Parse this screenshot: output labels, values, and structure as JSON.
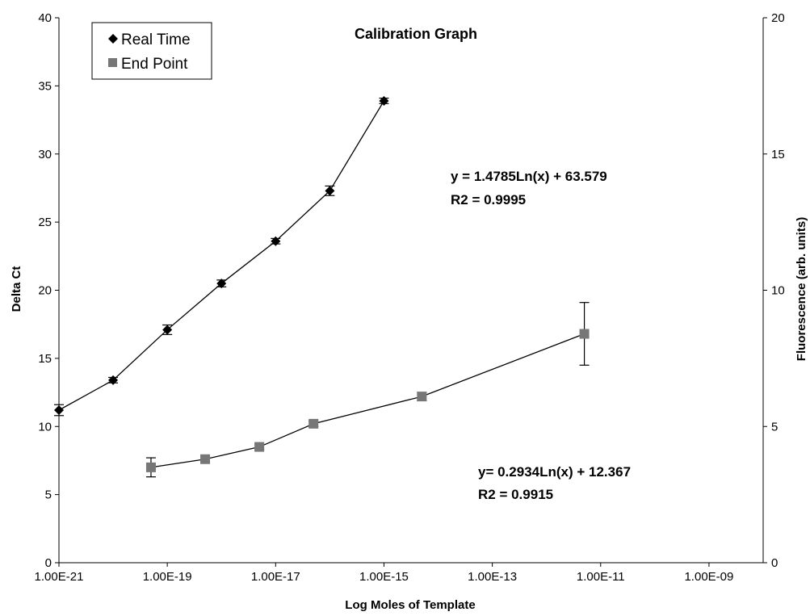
{
  "chart_data": {
    "type": "scatter",
    "title": "Calibration Graph",
    "xlabel": "Log  Moles of Template",
    "ylabel": "Delta Ct",
    "y2label": "Fluorescence (arb. units)",
    "x_scale": "log",
    "x_ticks": [
      "1.00E-21",
      "1.00E-19",
      "1.00E-17",
      "1.00E-15",
      "1.00E-13",
      "1.00E-11",
      "1.00E-09"
    ],
    "x_tick_values": [
      1e-21,
      1e-19,
      1e-17,
      1e-15,
      1e-13,
      1e-11,
      1e-09
    ],
    "xlim": [
      1e-21,
      1e-08
    ],
    "ylim": [
      0,
      40
    ],
    "y_ticks": [
      "0",
      "5",
      "10",
      "15",
      "20",
      "25",
      "30",
      "35",
      "40"
    ],
    "y2lim": [
      0,
      20
    ],
    "y2_ticks": [
      "0",
      "5",
      "10",
      "15",
      "20"
    ],
    "grid": false,
    "legend_position": "top-left",
    "series": [
      {
        "name": "Real Time",
        "axis": "left",
        "marker": "diamond",
        "color": "#000000",
        "x": [
          1e-21,
          1e-20,
          1e-19,
          1e-18,
          1e-17,
          1e-16,
          1e-15
        ],
        "y": [
          11.2,
          13.4,
          17.1,
          20.5,
          23.6,
          27.3,
          33.9
        ],
        "err": [
          0.4,
          0.2,
          0.35,
          0.25,
          0.2,
          0.35,
          0.2
        ],
        "trendline": {
          "equation": "y = 1.4785Ln(x) + 63.579",
          "r2": "R2 = 0.9995"
        }
      },
      {
        "name": "End Point",
        "axis": "right",
        "marker": "square",
        "color": "#777777",
        "x": [
          5e-20,
          5e-19,
          5e-18,
          5e-17,
          5e-15,
          5e-12
        ],
        "y": [
          3.5,
          3.8,
          4.25,
          5.1,
          6.1,
          8.4
        ],
        "err": [
          0.35,
          0.1,
          0.1,
          0.1,
          0.15,
          1.15
        ],
        "trendline": {
          "equation": "y= 0.2934Ln(x) + 12.367",
          "r2": "R2 = 0.9915"
        }
      }
    ]
  }
}
